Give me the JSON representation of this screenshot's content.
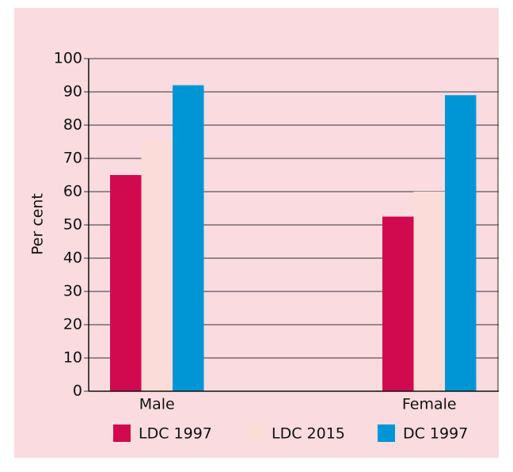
{
  "chart_data": {
    "type": "bar",
    "y_label": "Per cent",
    "categories": [
      "Male",
      "Female"
    ],
    "series": [
      {
        "name": "LDC 1997",
        "color": "#d10a50",
        "values": [
          65,
          52.5
        ]
      },
      {
        "name": "LDC 2015",
        "color": "#fcdcd8",
        "values": [
          75.5,
          60
        ]
      },
      {
        "name": "DC 1997",
        "color": "#0096d6",
        "values": [
          92,
          89
        ]
      }
    ],
    "ylim": [
      0,
      100
    ],
    "yticks": [
      0,
      10,
      20,
      30,
      40,
      50,
      60,
      70,
      80,
      90,
      100
    ],
    "grid": true
  }
}
